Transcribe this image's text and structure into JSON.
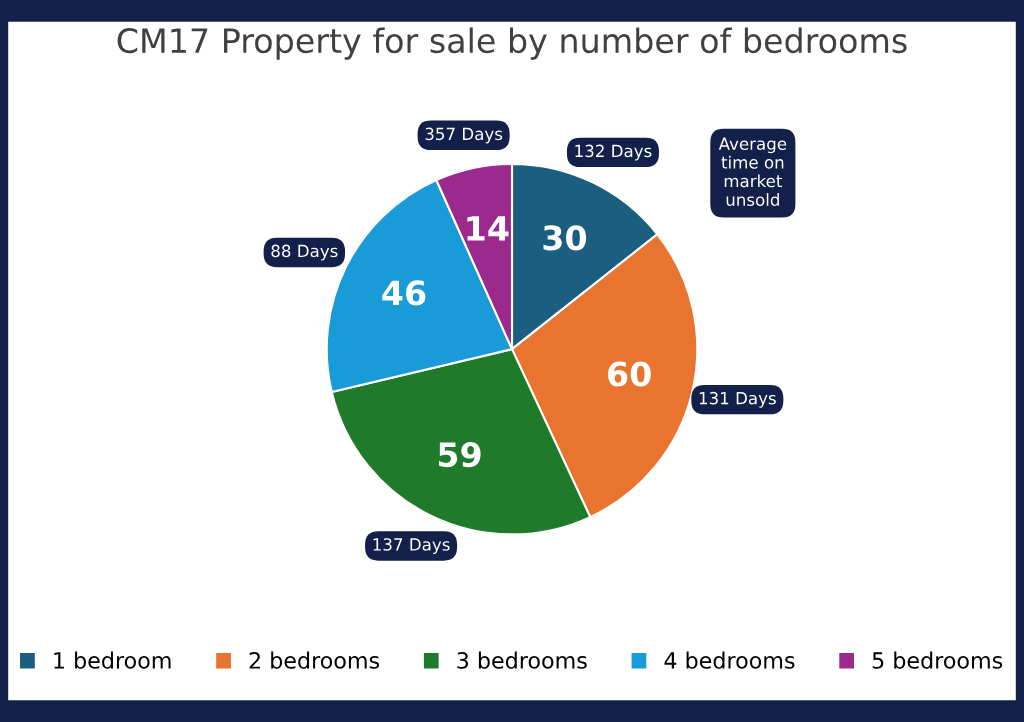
{
  "chart_data": {
    "type": "pie",
    "title": "CM17 Property for sale by number of bedrooms",
    "categories": [
      "1 bedroom",
      "2 bedrooms",
      "3 bedrooms",
      "4 bedrooms",
      "5 bedrooms"
    ],
    "values": [
      30,
      60,
      59,
      46,
      14
    ],
    "colors": [
      "#1b5e80",
      "#e8742f",
      "#1f7a2a",
      "#199bd8",
      "#9c2a8e"
    ],
    "data_labels": true,
    "legend": "bottom",
    "annotations": [
      "132 Days",
      "131 Days",
      "137 Days",
      "88 Days",
      "357 Days",
      "Average\ntime on\nmarket\nunsold"
    ]
  }
}
